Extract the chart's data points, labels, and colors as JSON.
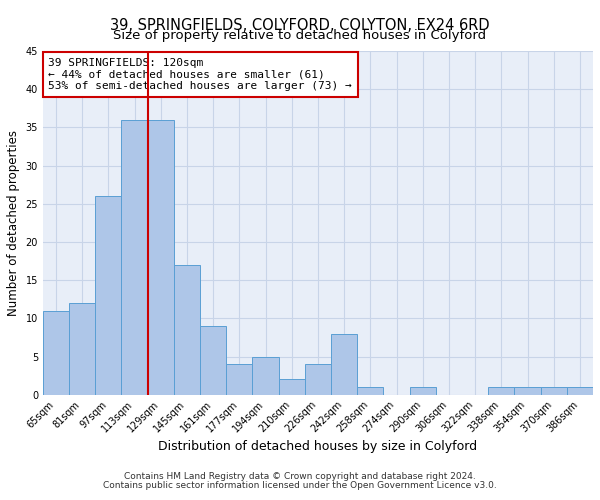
{
  "title": "39, SPRINGFIELDS, COLYFORD, COLYTON, EX24 6RD",
  "subtitle": "Size of property relative to detached houses in Colyford",
  "xlabel": "Distribution of detached houses by size in Colyford",
  "ylabel": "Number of detached properties",
  "bin_labels": [
    "65sqm",
    "81sqm",
    "97sqm",
    "113sqm",
    "129sqm",
    "145sqm",
    "161sqm",
    "177sqm",
    "194sqm",
    "210sqm",
    "226sqm",
    "242sqm",
    "258sqm",
    "274sqm",
    "290sqm",
    "306sqm",
    "322sqm",
    "338sqm",
    "354sqm",
    "370sqm",
    "386sqm"
  ],
  "bar_values": [
    11,
    12,
    26,
    36,
    36,
    17,
    9,
    4,
    5,
    2,
    4,
    8,
    1,
    0,
    1,
    0,
    0,
    1,
    1,
    1,
    1
  ],
  "bar_color": "#aec6e8",
  "bar_edge_color": "#5a9fd4",
  "vline_color": "#cc0000",
  "annotation_line1": "39 SPRINGFIELDS: 120sqm",
  "annotation_line2": "← 44% of detached houses are smaller (61)",
  "annotation_line3": "53% of semi-detached houses are larger (73) →",
  "annotation_box_edge_color": "#cc0000",
  "ylim": [
    0,
    45
  ],
  "yticks": [
    0,
    5,
    10,
    15,
    20,
    25,
    30,
    35,
    40,
    45
  ],
  "grid_color": "#c8d4e8",
  "bg_color": "#e8eef8",
  "footer1": "Contains HM Land Registry data © Crown copyright and database right 2024.",
  "footer2": "Contains public sector information licensed under the Open Government Licence v3.0.",
  "title_fontsize": 10.5,
  "subtitle_fontsize": 9.5,
  "xlabel_fontsize": 9,
  "ylabel_fontsize": 8.5,
  "tick_fontsize": 7,
  "annotation_fontsize": 8,
  "footer_fontsize": 6.5
}
